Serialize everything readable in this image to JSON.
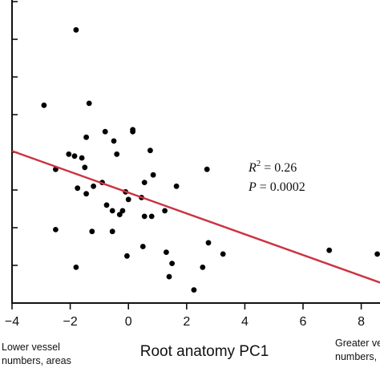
{
  "chart_data": {
    "type": "scatter",
    "title": "",
    "xlabel": "Root anatomy PC1",
    "ylabel": "",
    "xlim": [
      -4,
      8.7
    ],
    "ylim": [
      0,
      8.2
    ],
    "x_ticks": [
      -4,
      -2,
      0,
      2,
      4,
      6,
      8
    ],
    "x_tick_labels": [
      "−4",
      "−2",
      "0",
      "2",
      "4",
      "6",
      "8"
    ],
    "y_ticks": [
      1,
      2,
      3,
      4,
      5,
      6,
      7,
      8
    ],
    "grid": false,
    "legend": "none",
    "x_annotation_left": [
      "Lower vessel",
      "numbers, areas"
    ],
    "x_annotation_right": [
      "Greater ve",
      "numbers,"
    ],
    "stats": {
      "r2_label": "R",
      "r2_sup": "2",
      "r2_value": " = 0.26",
      "p_label": "P",
      "p_value": " = 0.0002"
    },
    "regression_line": {
      "slope": -0.276,
      "intercept": 2.93,
      "color": "#cc3340"
    },
    "point_color": "#000000",
    "points": [
      {
        "x": -1.8,
        "y": 7.25
      },
      {
        "x": -2.9,
        "y": 5.25
      },
      {
        "x": -1.35,
        "y": 5.3
      },
      {
        "x": -0.8,
        "y": 4.55
      },
      {
        "x": 0.15,
        "y": 4.55
      },
      {
        "x": 0.15,
        "y": 4.6
      },
      {
        "x": -1.45,
        "y": 4.4
      },
      {
        "x": -0.5,
        "y": 4.3
      },
      {
        "x": 0.75,
        "y": 4.05
      },
      {
        "x": -2.05,
        "y": 3.95
      },
      {
        "x": -1.85,
        "y": 3.9
      },
      {
        "x": -1.6,
        "y": 3.85
      },
      {
        "x": -0.4,
        "y": 3.95
      },
      {
        "x": -2.5,
        "y": 3.55
      },
      {
        "x": -1.5,
        "y": 3.6
      },
      {
        "x": -1.2,
        "y": 3.1
      },
      {
        "x": -0.9,
        "y": 3.2
      },
      {
        "x": 0.55,
        "y": 3.2
      },
      {
        "x": 0.85,
        "y": 3.4
      },
      {
        "x": 2.7,
        "y": 3.55
      },
      {
        "x": -1.75,
        "y": 3.05
      },
      {
        "x": -1.45,
        "y": 2.9
      },
      {
        "x": -0.1,
        "y": 2.95
      },
      {
        "x": 0.0,
        "y": 2.75
      },
      {
        "x": 0.45,
        "y": 2.8
      },
      {
        "x": -0.75,
        "y": 2.6
      },
      {
        "x": 1.65,
        "y": 3.1
      },
      {
        "x": -0.55,
        "y": 2.45
      },
      {
        "x": -0.3,
        "y": 2.35
      },
      {
        "x": -0.2,
        "y": 2.45
      },
      {
        "x": 0.55,
        "y": 2.3
      },
      {
        "x": 0.8,
        "y": 2.3
      },
      {
        "x": 1.25,
        "y": 2.45
      },
      {
        "x": -2.5,
        "y": 1.95
      },
      {
        "x": -1.25,
        "y": 1.9
      },
      {
        "x": -0.55,
        "y": 1.9
      },
      {
        "x": 0.5,
        "y": 1.5
      },
      {
        "x": 2.75,
        "y": 1.6
      },
      {
        "x": 1.3,
        "y": 1.35
      },
      {
        "x": 3.25,
        "y": 1.3
      },
      {
        "x": -0.05,
        "y": 1.25
      },
      {
        "x": 1.5,
        "y": 1.05
      },
      {
        "x": 2.55,
        "y": 0.95
      },
      {
        "x": -1.8,
        "y": 0.95
      },
      {
        "x": 1.4,
        "y": 0.7
      },
      {
        "x": 2.25,
        "y": 0.35
      },
      {
        "x": 6.9,
        "y": 1.4
      },
      {
        "x": 8.55,
        "y": 1.3
      }
    ]
  }
}
